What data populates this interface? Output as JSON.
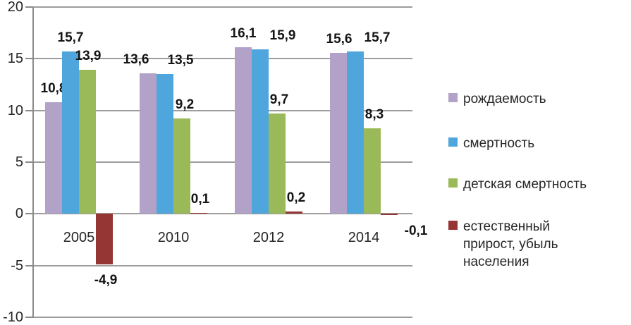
{
  "chart_data": {
    "type": "bar",
    "categories": [
      "2005",
      "2010",
      "2012",
      "2014"
    ],
    "series": [
      {
        "name": "рождаемость",
        "color": "#b3a2c7",
        "values": [
          10.8,
          13.6,
          16.1,
          15.6
        ]
      },
      {
        "name": "смертность",
        "color": "#4fa6dc",
        "values": [
          15.7,
          13.5,
          15.9,
          15.7
        ]
      },
      {
        "name": "детская смертность",
        "color": "#9aba59",
        "values": [
          13.9,
          9.2,
          9.7,
          8.3
        ]
      },
      {
        "name": "естественный прирост, убыль  населения",
        "legend_lines": [
          "естественный",
          "прирост, убыль  населения"
        ],
        "color": "#963634",
        "values": [
          -4.9,
          0.1,
          0.2,
          -0.1
        ]
      }
    ],
    "data_labels": [
      [
        "10,8",
        "13,6",
        "16,1",
        "15,6"
      ],
      [
        "15,7",
        "13,5",
        "15,9",
        "15,7"
      ],
      [
        "13,9",
        "9,2",
        "9,7",
        "8,3"
      ],
      [
        "-4,9",
        "0,1",
        "0,2",
        "-0,1"
      ]
    ],
    "label_dx": [
      [
        0,
        -17,
        0,
        1
      ],
      [
        0,
        22,
        32,
        31
      ],
      [
        1,
        4,
        3,
        3
      ],
      [
        2,
        2,
        3,
        38
      ]
    ],
    "ylim": [
      -10,
      20
    ],
    "ytick_values": [
      20,
      15,
      10,
      5,
      0,
      -5,
      -10
    ],
    "ytick_labels": [
      "20",
      "15",
      "10",
      "5",
      "0",
      "-5",
      "-10"
    ],
    "grid": true,
    "legend_position": "right",
    "colors": {
      "gridline": "#9d9d9d",
      "axis": "#8a8a8a",
      "axis_text": "#262626",
      "label_text": "#141414",
      "background": "#ffffff"
    }
  }
}
